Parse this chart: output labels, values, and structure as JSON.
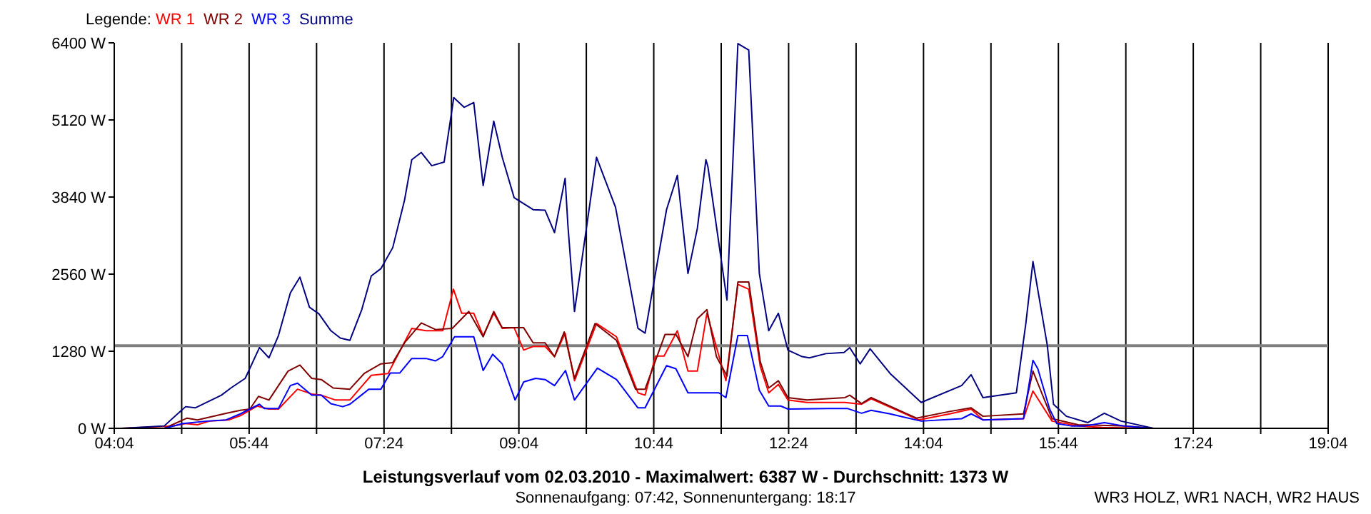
{
  "chart_data": {
    "type": "line",
    "title": "Leistungsverlauf vom 02.03.2010 - Maximalwert: 6387 W - Durchschnitt: 1373 W",
    "subtitle": "Sonnenaufgang: 07:42, Sonnenuntergang: 18:17",
    "legend_title": "Legende:",
    "legend": "top left",
    "grid": true,
    "annotations": [
      "WR3 HOLZ, WR1 NACH, WR2 HAUS"
    ],
    "xlim": [
      4.0667,
      19.0667
    ],
    "xticks": [
      {
        "value": 4.0667,
        "label": "04:04"
      },
      {
        "value": 4.9,
        "label": null
      },
      {
        "value": 5.7333,
        "label": "05:44"
      },
      {
        "value": 6.5667,
        "label": null
      },
      {
        "value": 7.4,
        "label": "07:24"
      },
      {
        "value": 8.2333,
        "label": null
      },
      {
        "value": 9.0667,
        "label": "09:04"
      },
      {
        "value": 9.9,
        "label": null
      },
      {
        "value": 10.7333,
        "label": "10:44"
      },
      {
        "value": 11.5667,
        "label": null
      },
      {
        "value": 12.4,
        "label": "12:24"
      },
      {
        "value": 13.2333,
        "label": null
      },
      {
        "value": 14.0667,
        "label": "14:04"
      },
      {
        "value": 14.9,
        "label": null
      },
      {
        "value": 15.7333,
        "label": "15:44"
      },
      {
        "value": 16.5667,
        "label": null
      },
      {
        "value": 17.4,
        "label": "17:24"
      },
      {
        "value": 18.2333,
        "label": null
      },
      {
        "value": 19.0667,
        "label": "19:04"
      }
    ],
    "ylim": [
      0,
      6400
    ],
    "yticks": [
      {
        "value": 0,
        "label": "0 W"
      },
      {
        "value": 1280,
        "label": "1280 W"
      },
      {
        "value": 2560,
        "label": "2560 W"
      },
      {
        "value": 3840,
        "label": "3840 W"
      },
      {
        "value": 5120,
        "label": "5120 W"
      },
      {
        "value": 6400,
        "label": "6400 W"
      }
    ],
    "ref_lines": [
      {
        "axis": "y",
        "value": 1373,
        "color": "#808080"
      }
    ],
    "series": [
      {
        "name": "WR 1",
        "color": "#ff0000",
        "x": [
          4.155,
          4.803,
          4.949,
          5.095,
          5.244,
          5.478,
          5.625,
          5.831,
          5.978,
          6.096,
          6.331,
          6.507,
          6.625,
          6.802,
          6.978,
          7.243,
          7.45,
          7.626,
          7.743,
          7.919,
          8.125,
          8.258,
          8.36,
          8.509,
          8.625,
          8.756,
          8.861,
          9.008,
          9.126,
          9.243,
          9.391,
          9.507,
          9.638,
          9.754,
          10.026,
          10.273,
          10.538,
          10.626,
          10.755,
          10.861,
          11.025,
          11.156,
          11.272,
          11.39,
          11.625,
          11.773,
          11.907,
          12.049,
          12.154,
          12.273,
          12.391,
          12.626,
          13.096,
          13.301,
          13.419,
          14.007,
          14.39,
          14.655,
          14.801,
          15.302,
          15.419,
          15.655,
          15.978,
          16.273,
          16.908
        ],
        "values": [
          0,
          40,
          80,
          60,
          120,
          140,
          210,
          370,
          320,
          320,
          650,
          570,
          550,
          470,
          470,
          880,
          910,
          1360,
          1660,
          1620,
          1620,
          2310,
          1910,
          1910,
          1540,
          1910,
          1660,
          1670,
          1300,
          1360,
          1360,
          1190,
          1580,
          790,
          1740,
          1520,
          590,
          550,
          1200,
          1200,
          1620,
          950,
          950,
          1910,
          790,
          2390,
          2310,
          1030,
          590,
          730,
          470,
          430,
          430,
          400,
          490,
          140,
          240,
          320,
          140,
          160,
          620,
          120,
          40,
          15,
          0
        ]
      },
      {
        "name": "WR 2",
        "color": "#800000",
        "x": [
          4.155,
          4.684,
          4.967,
          5.095,
          5.448,
          5.625,
          5.743,
          5.849,
          5.978,
          6.214,
          6.361,
          6.507,
          6.625,
          6.772,
          6.978,
          7.155,
          7.361,
          7.508,
          7.654,
          7.861,
          8.037,
          8.244,
          8.448,
          8.625,
          8.756,
          8.861,
          9.126,
          9.243,
          9.391,
          9.507,
          9.626,
          9.754,
          10.008,
          10.273,
          10.508,
          10.626,
          10.873,
          11.007,
          11.156,
          11.272,
          11.39,
          11.508,
          11.638,
          11.773,
          11.907,
          12.049,
          12.154,
          12.273,
          12.391,
          12.626,
          13.096,
          13.155,
          13.301,
          13.419,
          13.979,
          14.39,
          14.655,
          14.801,
          15.302,
          15.419,
          15.655,
          15.978,
          16.566,
          16.908
        ],
        "values": [
          0,
          0,
          170,
          140,
          250,
          300,
          320,
          530,
          470,
          950,
          1050,
          830,
          810,
          670,
          650,
          910,
          1070,
          1090,
          1420,
          1750,
          1640,
          1660,
          1940,
          1520,
          1940,
          1670,
          1670,
          1420,
          1420,
          1190,
          1600,
          830,
          1740,
          1460,
          650,
          650,
          1560,
          1560,
          1190,
          1820,
          1970,
          1190,
          870,
          2430,
          2430,
          1110,
          670,
          790,
          510,
          470,
          510,
          550,
          410,
          510,
          170,
          280,
          340,
          200,
          240,
          950,
          160,
          60,
          40,
          0
        ]
      },
      {
        "name": "WR 3",
        "color": "#0000ff",
        "x": [
          4.155,
          4.684,
          4.919,
          5.214,
          5.448,
          5.625,
          5.861,
          5.92,
          6.096,
          6.243,
          6.331,
          6.507,
          6.625,
          6.744,
          6.89,
          6.978,
          7.213,
          7.361,
          7.478,
          7.596,
          7.743,
          7.919,
          8.037,
          8.125,
          8.272,
          8.509,
          8.625,
          8.743,
          8.861,
          9.02,
          9.126,
          9.273,
          9.391,
          9.507,
          9.643,
          9.754,
          10.037,
          10.273,
          10.538,
          10.626,
          10.891,
          11.007,
          11.156,
          11.537,
          11.625,
          11.773,
          11.89,
          12.038,
          12.154,
          12.303,
          12.391,
          12.89,
          13.125,
          13.301,
          13.419,
          13.654,
          14.038,
          14.537,
          14.655,
          14.801,
          15.302,
          15.419,
          15.479,
          15.625,
          15.713,
          15.89,
          16.066,
          16.301,
          16.538,
          16.891
        ],
        "values": [
          0,
          0,
          80,
          120,
          140,
          240,
          400,
          330,
          330,
          710,
          750,
          550,
          550,
          410,
          360,
          400,
          650,
          650,
          920,
          920,
          1160,
          1160,
          1120,
          1190,
          1520,
          1520,
          960,
          1230,
          1070,
          470,
          770,
          830,
          810,
          710,
          960,
          470,
          1000,
          810,
          340,
          340,
          1040,
          990,
          590,
          590,
          510,
          1540,
          1540,
          630,
          370,
          370,
          320,
          330,
          330,
          250,
          300,
          240,
          120,
          160,
          240,
          140,
          160,
          1130,
          990,
          320,
          80,
          40,
          40,
          95,
          40,
          0
        ]
      },
      {
        "name": "Summe",
        "color": "#000080",
        "x": [
          4.155,
          4.684,
          4.949,
          5.067,
          5.39,
          5.508,
          5.685,
          5.861,
          5.978,
          6.096,
          6.243,
          6.361,
          6.479,
          6.596,
          6.744,
          6.86,
          6.978,
          7.125,
          7.243,
          7.361,
          7.508,
          7.654,
          7.743,
          7.861,
          7.99,
          8.143,
          8.262,
          8.39,
          8.509,
          8.625,
          8.756,
          8.861,
          9.008,
          9.243,
          9.391,
          9.507,
          9.638,
          9.673,
          9.754,
          10.026,
          10.261,
          10.538,
          10.626,
          10.891,
          11.025,
          11.156,
          11.272,
          11.378,
          11.403,
          11.638,
          11.773,
          11.907,
          12.038,
          12.154,
          12.273,
          12.391,
          12.567,
          12.656,
          12.86,
          13.084,
          13.155,
          13.284,
          13.407,
          13.654,
          14.038,
          14.537,
          14.655,
          14.801,
          15.214,
          15.331,
          15.419,
          15.596,
          15.673,
          15.832,
          16.097,
          16.301,
          16.508,
          16.908
        ],
        "values": [
          0,
          40,
          360,
          340,
          550,
          670,
          830,
          1340,
          1170,
          1540,
          2250,
          2510,
          2010,
          1900,
          1620,
          1500,
          1460,
          1970,
          2530,
          2650,
          3000,
          3790,
          4460,
          4580,
          4360,
          4420,
          5490,
          5330,
          5410,
          4030,
          5100,
          4500,
          3830,
          3630,
          3620,
          3250,
          4150,
          3360,
          1940,
          4500,
          3670,
          1660,
          1580,
          3630,
          4200,
          2570,
          3320,
          4460,
          4340,
          2130,
          6387,
          6280,
          2570,
          1620,
          1910,
          1300,
          1190,
          1170,
          1240,
          1260,
          1340,
          1070,
          1320,
          910,
          430,
          710,
          890,
          510,
          590,
          1740,
          2770,
          1380,
          400,
          200,
          95,
          250,
          120,
          0
        ]
      }
    ]
  }
}
